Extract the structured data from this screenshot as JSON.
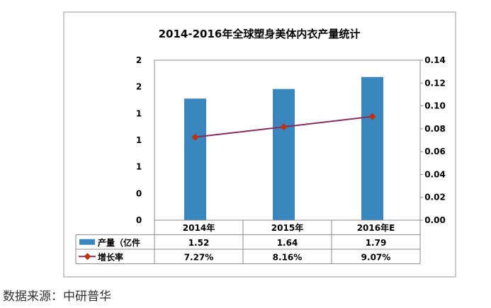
{
  "chart_data": {
    "type": "bar",
    "title": "2014-2016年全球塑身美体内衣产量统计",
    "categories": [
      "2014年",
      "2015年",
      "2016年E"
    ],
    "series": [
      {
        "name": "产量（亿件",
        "kind": "bar",
        "axis": "left",
        "values": [
          1.52,
          1.64,
          1.79
        ],
        "labels": [
          "1.52",
          "1.64",
          "1.79"
        ],
        "color": "#3a86be"
      },
      {
        "name": "增长率",
        "kind": "line",
        "axis": "right",
        "values": [
          0.0727,
          0.0816,
          0.0907
        ],
        "labels": [
          "7.27%",
          "8.16%",
          "9.07%"
        ],
        "color": "#8b2c5c",
        "marker_color": "#c0310f"
      }
    ],
    "left_axis": {
      "ylim": [
        0,
        2
      ],
      "tick_labels": [
        "0",
        "0",
        "1",
        "1",
        "1",
        "2",
        "2"
      ]
    },
    "right_axis": {
      "ylim": [
        0,
        0.14
      ],
      "tick_labels": [
        "0.00",
        "0.02",
        "0.04",
        "0.06",
        "0.08",
        "0.10",
        "0.12",
        "0.14"
      ]
    },
    "grid": false,
    "legend": "data-table"
  },
  "source_text": "数据来源：中研普华"
}
